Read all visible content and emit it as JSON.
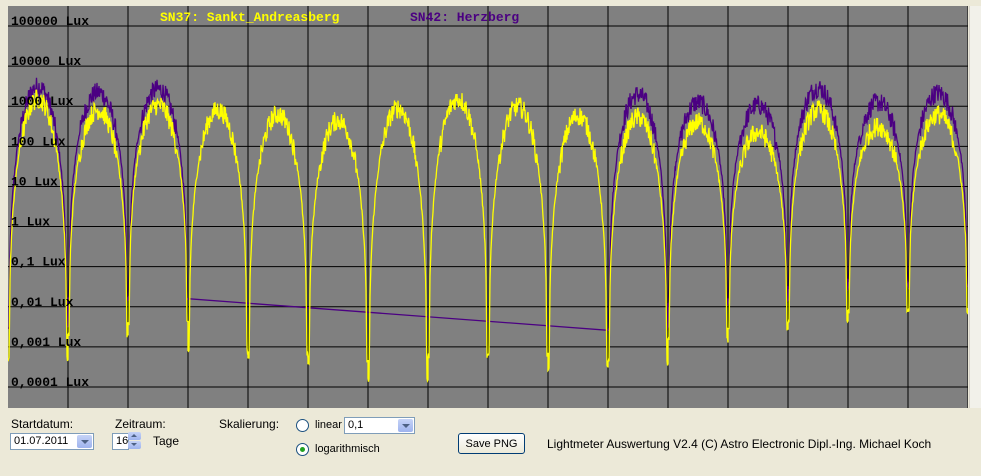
{
  "chart_data": {
    "type": "line",
    "title": "",
    "xlabel": "",
    "ylabel": "",
    "log_scale": true,
    "ylim": [
      0.0001,
      100000
    ],
    "y_tick_labels": [
      "100000 Lux",
      "10000 Lux",
      "1000 Lux",
      "100 Lux",
      "10 Lux",
      "1 Lux",
      "0,1 Lux",
      "0,01 Lux",
      "0,001 Lux",
      "0,0001 Lux"
    ],
    "days": 16,
    "grid": true,
    "background_color": "#808080",
    "legend": {
      "placement": "top"
    },
    "series": [
      {
        "name": "SN37: Sankt_Andreasberg",
        "color": "#ffff00",
        "daily_peak_lux": [
          1700,
          900,
          1200,
          900,
          700,
          500,
          1000,
          1700,
          1100,
          650,
          600,
          450,
          250,
          900,
          350,
          700
        ],
        "daily_night_min_lux": [
          0.0005,
          0.002,
          0.004,
          0.0008,
          0.0006,
          0.0004,
          0.00015,
          0.0006,
          0.0006,
          0.0003,
          0.0004,
          0.0015,
          0.003,
          0.004,
          0.008,
          0.008
        ]
      },
      {
        "name": "SN42: Herzberg",
        "color": "#4b0082",
        "daily_peak_lux": [
          3500,
          2500,
          3000,
          2400,
          1500,
          1100,
          0,
          0,
          0,
          1700,
          2200,
          1400,
          1200,
          3200,
          1400,
          2400
        ],
        "daily_night_min_lux": [
          0.003,
          0.015,
          0.015,
          0,
          0,
          0,
          0,
          0,
          0,
          0,
          0.003,
          0.012,
          0.015,
          0.03,
          0.04,
          0.035
        ]
      }
    ]
  },
  "controls": {
    "startdatum_label": "Startdatum:",
    "startdatum_value": "01.07.2011",
    "zeitraum_label": "Zeitraum:",
    "zeitraum_value": "16",
    "tage_label": "Tage",
    "skalierung_label": "Skalierung:",
    "linear_label": "linear",
    "linear_value": "0,1",
    "log_label": "logarithmisch",
    "save_button": "Save PNG",
    "footer": "Lightmeter Auswertung V2.4  (C) Astro Electronic Dipl.-Ing. Michael Koch"
  }
}
